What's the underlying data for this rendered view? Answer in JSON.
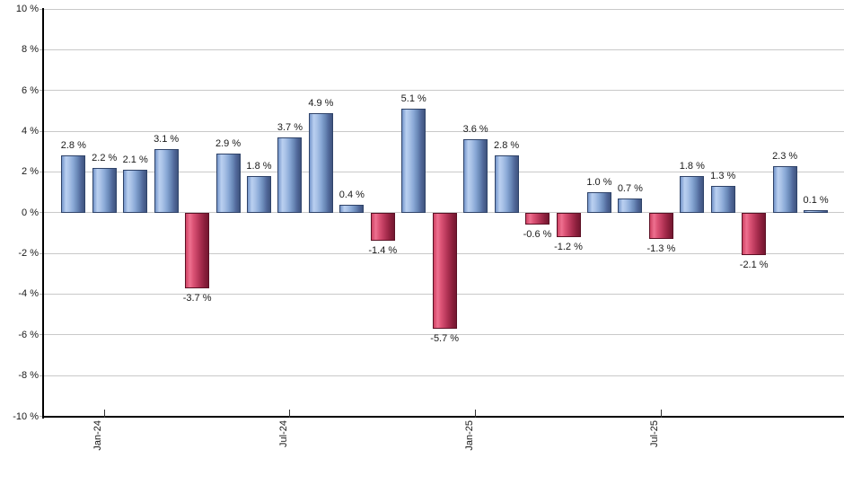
{
  "page": {
    "background": "#ffffff"
  },
  "chart_data": {
    "type": "bar",
    "title": "",
    "unit": "%",
    "values": [
      2.8,
      2.2,
      2.1,
      3.1,
      -3.7,
      2.9,
      1.8,
      3.7,
      4.9,
      0.4,
      -1.4,
      5.1,
      -5.7,
      3.6,
      2.8,
      -0.6,
      -1.2,
      1.0,
      0.7,
      -1.3,
      1.8,
      1.3,
      -2.1,
      2.3,
      0.1
    ],
    "bar_value_labels": [
      "2.8 %",
      "2.2 %",
      "2.1 %",
      "3.1 %",
      "-3.7 %",
      "2.9 %",
      "1.8 %",
      "3.7 %",
      "4.9 %",
      "0.4 %",
      "-1.4 %",
      "5.1 %",
      "-5.7 %",
      "3.6 %",
      "2.8 %",
      "-0.6 %",
      "-1.2 %",
      "1.0 %",
      "0.7 %",
      "-1.3 %",
      "1.8 %",
      "1.3 %",
      "-2.1 %",
      "2.3 %",
      "0.1 %"
    ],
    "x_axis": {
      "tick_labels": [
        {
          "label": "Jan-24",
          "bar_index_zero_based": 1
        },
        {
          "label": "Jul-24",
          "bar_index_zero_based": 7
        },
        {
          "label": "Jan-25",
          "bar_index_zero_based": 13
        },
        {
          "label": "Jul-25",
          "bar_index_zero_based": 19
        }
      ]
    },
    "y_axis": {
      "tick_labels": [
        "10 %",
        "8 %",
        "6 %",
        "4 %",
        "2 %",
        "0 %",
        "-2 %",
        "-4 %",
        "-6 %",
        "-8 %",
        "-10 %"
      ],
      "tick_values": [
        10,
        8,
        6,
        4,
        2,
        0,
        -2,
        -4,
        -6,
        -8,
        -10
      ],
      "ylim": [
        -10,
        10
      ]
    },
    "grid": true,
    "legend": "none",
    "colors": {
      "positive_bar_gradient": [
        "#7596cb",
        "#bad0f0",
        "#a9c2e7",
        "#8aa9d6",
        "#6b8ab9",
        "#51689a",
        "#3f547e"
      ],
      "positive_bar_border": "#2f4369",
      "negative_bar_gradient": [
        "#cf4263",
        "#ee7190",
        "#dd5577",
        "#c23f62",
        "#a52c4c",
        "#8a1f3b",
        "#731730"
      ],
      "negative_bar_border": "#5c1125",
      "gridline": "#c9c9c9",
      "axis": "#000000",
      "label_text": "#1a1a1a",
      "background": "#ffffff"
    }
  }
}
